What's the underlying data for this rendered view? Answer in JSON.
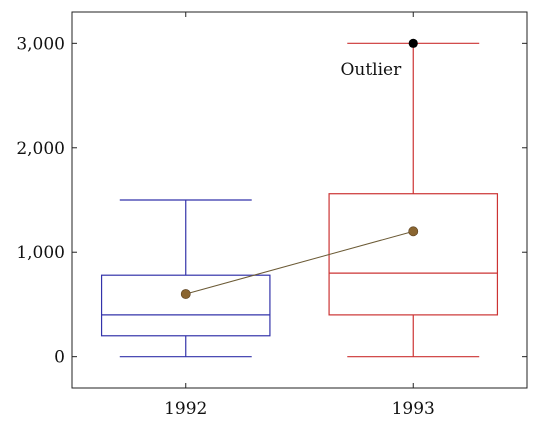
{
  "chart_data": {
    "type": "box",
    "categories": [
      "1992",
      "1993"
    ],
    "ylim": [
      -300,
      3300
    ],
    "yticks": [
      0,
      1000,
      2000,
      3000
    ],
    "ytick_labels": [
      "0",
      "1,000",
      "2,000",
      "3,000"
    ],
    "grid": false,
    "boxes": [
      {
        "category": "1992",
        "min": 0,
        "q1": 200,
        "median": 400,
        "q3": 780,
        "max": 1500,
        "mean": 600,
        "color": "#3333aa"
      },
      {
        "category": "1993",
        "min": 0,
        "q1": 400,
        "median": 800,
        "q3": 1560,
        "max": 3000,
        "mean": 1200,
        "color": "#cc3333"
      }
    ],
    "outliers": [
      {
        "category": "1993",
        "value": 3000
      }
    ],
    "mean_line_color": "#6b5a35",
    "mean_marker_color": "#8a6530",
    "outlier_color": "#000000",
    "annotation": {
      "text": "Outlier",
      "category": "1993",
      "value": 2800
    }
  }
}
